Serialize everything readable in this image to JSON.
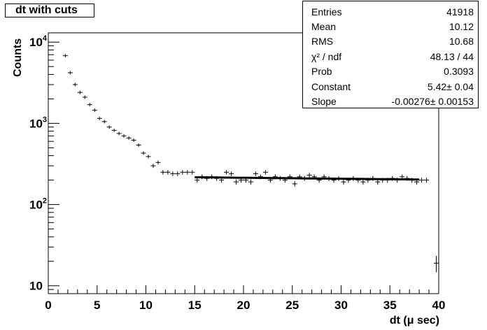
{
  "chart_data": {
    "type": "scatter",
    "title": "dt with cuts",
    "xlabel": "dt (μ sec)",
    "ylabel": "Counts",
    "xlim": [
      0,
      40
    ],
    "ylim": [
      8,
      13000
    ],
    "yscale": "log",
    "x_ticks": [
      "0",
      "5",
      "10",
      "15",
      "20",
      "25",
      "30",
      "35",
      "40"
    ],
    "y_ticks": [
      {
        "base": "10",
        "exp": ""
      },
      {
        "base": "10",
        "exp": "2"
      },
      {
        "base": "10",
        "exp": "3"
      },
      {
        "base": "10",
        "exp": "4"
      }
    ],
    "series": [
      {
        "x": [
          1.75,
          2.25,
          2.75,
          3.25,
          3.75,
          4.25,
          4.75,
          5.25,
          5.75,
          6.25,
          6.75,
          7.25,
          7.75,
          8.25,
          8.75,
          9.25,
          9.75,
          10.25,
          10.75,
          11.25,
          11.75,
          12.25,
          12.75,
          13.25,
          13.75,
          14.25,
          14.75,
          15.25,
          15.75,
          16.25,
          16.75,
          17.25,
          17.75,
          18.25,
          18.75,
          19.25,
          19.75,
          20.25,
          20.75,
          21.25,
          21.75,
          22.25,
          22.75,
          23.25,
          23.75,
          24.25,
          24.75,
          25.25,
          25.75,
          26.25,
          26.75,
          27.25,
          27.75,
          28.25,
          28.75,
          29.25,
          29.75,
          30.25,
          30.75,
          31.25,
          31.75,
          32.25,
          32.75,
          33.25,
          33.75,
          34.25,
          34.75,
          35.25,
          35.75,
          36.25,
          36.75,
          37.25,
          37.75,
          38.25,
          38.75,
          39.75
        ],
        "y": [
          6800,
          4200,
          3000,
          2400,
          2100,
          1700,
          1450,
          1150,
          1050,
          900,
          820,
          750,
          700,
          660,
          620,
          540,
          430,
          390,
          300,
          330,
          250,
          250,
          240,
          240,
          250,
          250,
          250,
          200,
          220,
          210,
          220,
          210,
          200,
          250,
          240,
          190,
          200,
          200,
          190,
          240,
          220,
          250,
          200,
          220,
          210,
          200,
          220,
          180,
          220,
          210,
          230,
          220,
          200,
          220,
          210,
          200,
          210,
          190,
          200,
          210,
          200,
          190,
          200,
          210,
          190,
          200,
          200,
          210,
          200,
          220,
          210,
          200,
          190,
          200,
          200,
          19
        ]
      }
    ],
    "fit": {
      "x_start": 15,
      "x_end": 38,
      "constant": 5.42,
      "slope": -0.00276
    }
  },
  "stats": [
    {
      "label": "Entries",
      "value": "41918"
    },
    {
      "label": "Mean",
      "value": "10.12"
    },
    {
      "label": "RMS",
      "value": "10.68"
    },
    {
      "label": "χ² / ndf",
      "value": "48.13 / 44"
    },
    {
      "label": "Prob",
      "value": "0.3093"
    },
    {
      "label": "Constant",
      "value": "5.42± 0.04"
    },
    {
      "label": "Slope",
      "value": "-0.00276± 0.00153"
    }
  ]
}
